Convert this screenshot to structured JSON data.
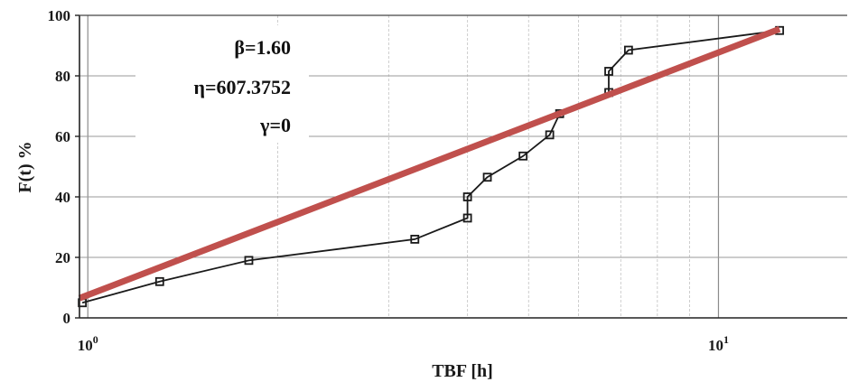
{
  "chart_data": {
    "type": "line",
    "xscale": "log",
    "xlabel": "TBF [h]",
    "ylabel": "F(t) %",
    "xlim": [
      0.97,
      16.0
    ],
    "ylim": [
      0,
      100
    ],
    "yticks": [
      "0",
      "20",
      "40",
      "60",
      "80",
      "100"
    ],
    "xticks": [
      {
        "base": "10",
        "exp": "0"
      },
      {
        "base": "10",
        "exp": "1"
      }
    ],
    "grid": true,
    "series": [
      {
        "style": "line-with-square-markers",
        "color": "#1a1a1a",
        "x": [
          0.98,
          1.3,
          1.8,
          3.3,
          4.0,
          4.0,
          4.3,
          4.9,
          5.4,
          5.6,
          6.7,
          6.7,
          7.2,
          12.5
        ],
        "y": [
          5,
          12,
          19,
          26,
          33,
          40,
          46.5,
          53.5,
          60.5,
          67.5,
          74.5,
          81.5,
          88.5,
          95
        ]
      },
      {
        "style": "fit-line",
        "color": "#c0504d",
        "x": [
          0.97,
          12.5
        ],
        "y": [
          6.5,
          95.5
        ]
      }
    ],
    "annotations": [
      "β=1.60",
      "η=607.3752",
      "γ=0"
    ]
  }
}
